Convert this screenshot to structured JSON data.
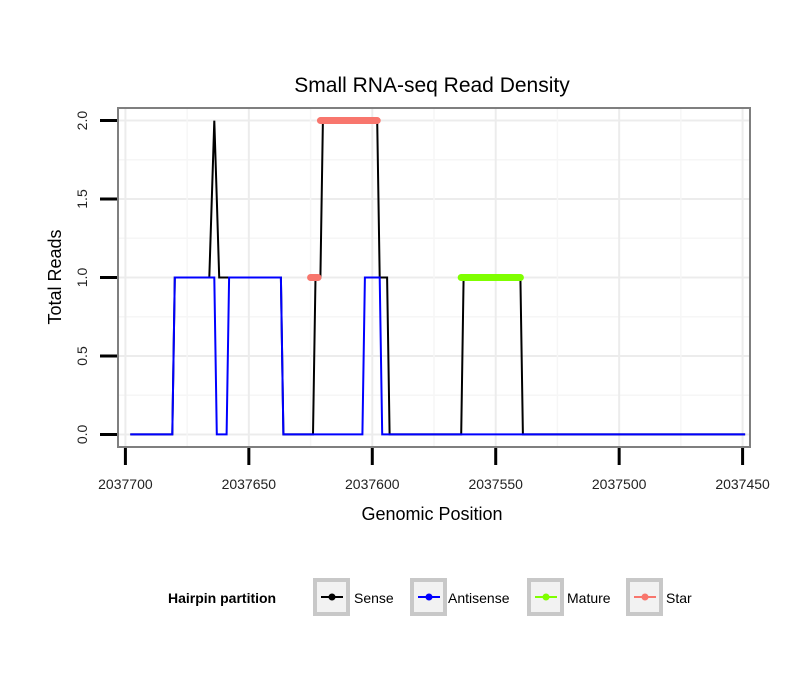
{
  "chart_data": {
    "type": "line",
    "title": "Small RNA-seq Read Density",
    "xlabel": "Genomic Position",
    "ylabel": "Total Reads",
    "xlim": [
      2037703,
      2037447
    ],
    "x_reversed": true,
    "ylim": [
      -0.08,
      2.08
    ],
    "x_ticks": [
      2037700,
      2037650,
      2037600,
      2037550,
      2037500,
      2037450
    ],
    "x_tick_labels": [
      "2037700",
      "2037650",
      "2037600",
      "2037550",
      "2037500",
      "2037450"
    ],
    "y_ticks": [
      0.0,
      0.5,
      1.0,
      1.5,
      2.0
    ],
    "y_tick_labels": [
      "0.0",
      "0.5",
      "1.0",
      "1.5",
      "2.0"
    ],
    "grid": true,
    "legend": {
      "title": "Hairpin partition",
      "position": "bottom",
      "entries": [
        "Sense",
        "Antisense",
        "Mature",
        "Star"
      ]
    },
    "series": [
      {
        "name": "Sense",
        "color": "#000000",
        "kind": "line",
        "x": [
          2037698,
          2037681,
          2037680,
          2037666,
          2037665,
          2037664,
          2037663,
          2037662,
          2037637,
          2037636,
          2037624,
          2037623,
          2037621,
          2037620,
          2037598,
          2037597,
          2037594,
          2037593,
          2037564,
          2037563,
          2037540,
          2037539,
          2037449
        ],
        "y": [
          0,
          0,
          1,
          1,
          1.5,
          2,
          1.5,
          1,
          1,
          0,
          0,
          1,
          1,
          2,
          2,
          1,
          1,
          0,
          0,
          1,
          1,
          0,
          0
        ]
      },
      {
        "name": "Antisense",
        "color": "#0000ff",
        "kind": "line",
        "x": [
          2037698,
          2037681,
          2037680,
          2037664,
          2037663,
          2037659,
          2037658,
          2037637,
          2037636,
          2037604,
          2037603,
          2037597,
          2037596,
          2037449
        ],
        "y": [
          0,
          0,
          1,
          1,
          0,
          0,
          1,
          1,
          0,
          0,
          1,
          1,
          0,
          0
        ]
      },
      {
        "name": "Mature",
        "color": "#7fff00",
        "kind": "segment",
        "x": [
          2037564,
          2037540
        ],
        "y": [
          1,
          1
        ]
      },
      {
        "name": "Star",
        "color": "#f8766d",
        "kind": "segment",
        "segments": [
          {
            "x": [
              2037621,
              2037598
            ],
            "y": [
              2,
              2
            ]
          },
          {
            "x": [
              2037625,
              2037622
            ],
            "y": [
              1,
              1
            ]
          }
        ]
      }
    ]
  }
}
